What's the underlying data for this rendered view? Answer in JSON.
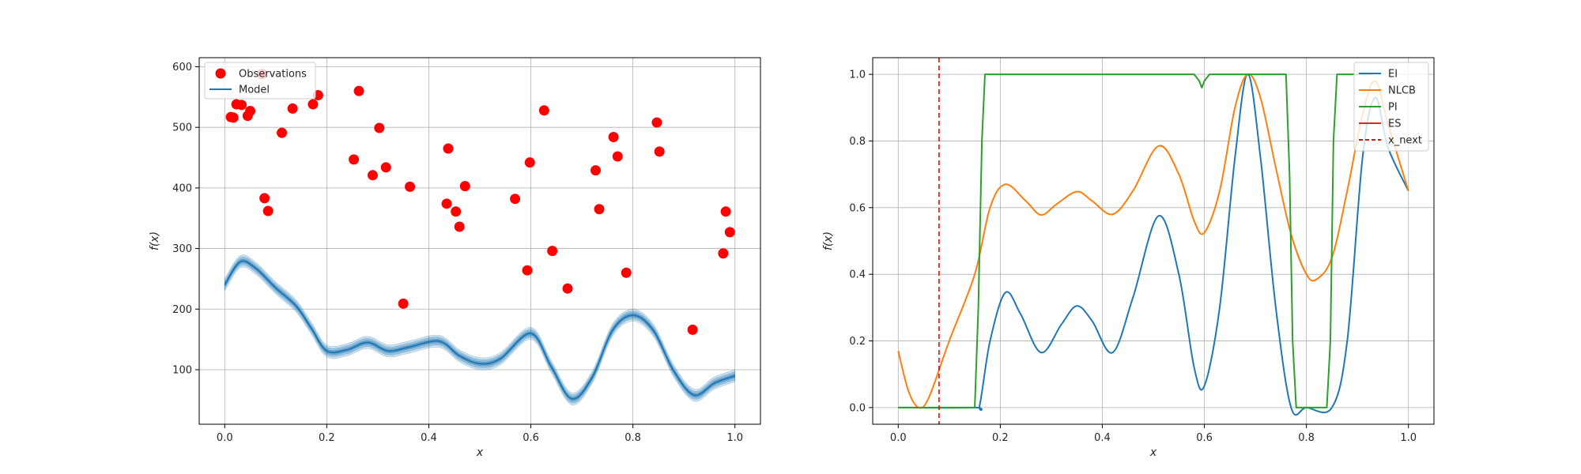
{
  "chart_data": [
    {
      "type": "scatter",
      "xlabel": "x",
      "ylabel": "f(x)",
      "xlim": [
        -0.05,
        1.05
      ],
      "ylim": [
        10,
        615
      ],
      "xticks": [
        0.0,
        0.2,
        0.4,
        0.6,
        0.8,
        1.0
      ],
      "xtick_labels": [
        "0.0",
        "0.2",
        "0.4",
        "0.6",
        "0.8",
        "1.0"
      ],
      "yticks": [
        100,
        200,
        300,
        400,
        500,
        600
      ],
      "ytick_labels": [
        "100",
        "200",
        "300",
        "400",
        "500",
        "600"
      ],
      "grid": true,
      "legend": {
        "placement": "top-left",
        "entries": [
          "Observations",
          "Model"
        ]
      },
      "observations": {
        "name": "Observations",
        "color": "#ff0000",
        "x": [
          0.012,
          0.017,
          0.023,
          0.033,
          0.045,
          0.05,
          0.073,
          0.078,
          0.085,
          0.112,
          0.133,
          0.173,
          0.183,
          0.253,
          0.263,
          0.29,
          0.303,
          0.316,
          0.35,
          0.363,
          0.435,
          0.438,
          0.453,
          0.46,
          0.471,
          0.569,
          0.593,
          0.598,
          0.626,
          0.642,
          0.672,
          0.727,
          0.734,
          0.762,
          0.77,
          0.787,
          0.847,
          0.852,
          0.917,
          0.977,
          0.982,
          0.99
        ],
        "y": [
          517,
          516,
          538,
          537,
          519,
          527,
          588,
          383,
          362,
          491,
          531,
          538,
          553,
          447,
          560,
          421,
          499,
          434,
          209,
          402,
          374,
          465,
          361,
          336,
          403,
          382,
          264,
          442,
          528,
          296,
          234,
          429,
          365,
          484,
          452,
          260,
          508,
          460,
          166,
          292,
          361,
          327
        ]
      },
      "model": {
        "name": "Model",
        "color": "#1f77b4",
        "x": [
          0.0,
          0.03,
          0.06,
          0.1,
          0.14,
          0.17,
          0.2,
          0.24,
          0.28,
          0.32,
          0.36,
          0.42,
          0.46,
          0.5,
          0.54,
          0.6,
          0.64,
          0.68,
          0.72,
          0.76,
          0.8,
          0.84,
          0.88,
          0.92,
          0.96,
          1.0
        ],
        "y": [
          240,
          278,
          268,
          235,
          205,
          168,
          131,
          133,
          145,
          131,
          137,
          147,
          123,
          110,
          118,
          160,
          105,
          52,
          87,
          165,
          190,
          165,
          98,
          58,
          78,
          90
        ],
        "band_half_width": 10
      }
    },
    {
      "type": "line",
      "xlabel": "x",
      "ylabel": "f(x)",
      "xlim": [
        -0.05,
        1.05
      ],
      "ylim": [
        -0.05,
        1.05
      ],
      "xticks": [
        0.0,
        0.2,
        0.4,
        0.6,
        0.8,
        1.0
      ],
      "xtick_labels": [
        "0.0",
        "0.2",
        "0.4",
        "0.6",
        "0.8",
        "1.0"
      ],
      "yticks": [
        0.0,
        0.2,
        0.4,
        0.6,
        0.8,
        1.0
      ],
      "ytick_labels": [
        "0.0",
        "0.2",
        "0.4",
        "0.6",
        "0.8",
        "1.0"
      ],
      "grid": true,
      "legend": {
        "placement": "top-right",
        "entries": [
          "EI",
          "NLCB",
          "PI",
          "ES",
          "x_next"
        ]
      },
      "series": [
        {
          "name": "EI",
          "color": "#1f77b4",
          "x": [
            0.0,
            0.15,
            0.16,
            0.18,
            0.21,
            0.24,
            0.28,
            0.32,
            0.35,
            0.38,
            0.42,
            0.46,
            0.51,
            0.55,
            0.58,
            0.6,
            0.63,
            0.66,
            0.685,
            0.71,
            0.74,
            0.77,
            0.8,
            0.85,
            0.88,
            0.91,
            0.935,
            0.96,
            1.0
          ],
          "y": [
            0.0,
            0.0,
            0.01,
            0.2,
            0.345,
            0.28,
            0.165,
            0.25,
            0.305,
            0.26,
            0.165,
            0.33,
            0.575,
            0.4,
            0.12,
            0.065,
            0.3,
            0.75,
            1.0,
            0.75,
            0.3,
            0.0,
            0.0,
            0.0,
            0.2,
            0.75,
            0.93,
            0.78,
            0.65
          ]
        },
        {
          "name": "NLCB",
          "color": "#ff7f0e",
          "x": [
            0.0,
            0.02,
            0.04,
            0.06,
            0.1,
            0.15,
            0.18,
            0.21,
            0.25,
            0.28,
            0.31,
            0.35,
            0.38,
            0.42,
            0.46,
            0.51,
            0.55,
            0.58,
            0.6,
            0.63,
            0.66,
            0.685,
            0.71,
            0.74,
            0.77,
            0.8,
            0.82,
            0.85,
            0.88,
            0.91,
            0.935,
            0.96,
            1.0
          ],
          "y": [
            0.17,
            0.05,
            0.0,
            0.03,
            0.2,
            0.4,
            0.6,
            0.67,
            0.62,
            0.578,
            0.61,
            0.648,
            0.62,
            0.58,
            0.65,
            0.785,
            0.7,
            0.56,
            0.525,
            0.65,
            0.9,
            1.0,
            0.93,
            0.72,
            0.52,
            0.4,
            0.385,
            0.45,
            0.65,
            0.88,
            0.98,
            0.85,
            0.65
          ]
        },
        {
          "name": "PI",
          "color": "#2ca02c",
          "x": [
            0.0,
            0.15,
            0.157,
            0.164,
            0.17,
            0.58,
            0.59,
            0.595,
            0.6,
            0.61,
            0.76,
            0.767,
            0.773,
            0.78,
            0.84,
            0.847,
            0.853,
            0.86,
            0.93
          ],
          "y": [
            0.0,
            0.0,
            0.3,
            0.8,
            1.0,
            1.0,
            0.98,
            0.96,
            0.98,
            1.0,
            1.0,
            0.7,
            0.2,
            0.0,
            0.0,
            0.2,
            0.8,
            1.0,
            1.0
          ]
        },
        {
          "name": "ES",
          "color": "#d62728",
          "x": [],
          "y": []
        }
      ],
      "x_next": {
        "name": "x_next",
        "x": 0.08,
        "color": "#ff0000"
      }
    }
  ]
}
